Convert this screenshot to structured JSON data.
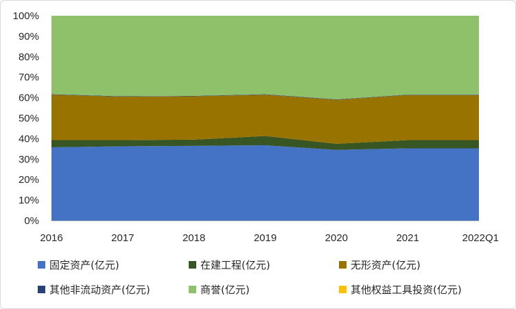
{
  "chart_data": {
    "type": "area",
    "stacked": true,
    "percent": true,
    "categories": [
      "2016",
      "2017",
      "2018",
      "2019",
      "2020",
      "2021",
      "2022Q1"
    ],
    "ylim": [
      0,
      100
    ],
    "y_ticks": [
      "0%",
      "10%",
      "20%",
      "30%",
      "40%",
      "50%",
      "60%",
      "70%",
      "80%",
      "90%",
      "100%"
    ],
    "grid": false,
    "legend_position": "bottom",
    "series": [
      {
        "name": "固定资产(亿元)",
        "color": "#4472C4",
        "values": [
          35.8,
          36.3,
          36.5,
          36.8,
          34.5,
          35.3,
          35.3
        ]
      },
      {
        "name": "在建工程(亿元)",
        "color": "#375623",
        "values": [
          3.5,
          3.0,
          3.0,
          4.5,
          3.0,
          4.0,
          4.0
        ]
      },
      {
        "name": "无形资产(亿元)",
        "color": "#997300",
        "values": [
          22.2,
          21.2,
          21.2,
          20.2,
          21.5,
          22.0,
          22.0
        ]
      },
      {
        "name": "其他非流动资产(亿元)",
        "color": "#264478",
        "values": [
          0.2,
          0.2,
          0.2,
          0.2,
          0.2,
          0.2,
          0.2
        ]
      },
      {
        "name": "商誉(亿元)",
        "color": "#8FC16A",
        "values": [
          38.3,
          39.3,
          39.1,
          38.3,
          40.8,
          38.5,
          38.5
        ]
      },
      {
        "name": "其他权益工具投资(亿元)",
        "color": "#FFC000",
        "values": [
          0,
          0,
          0,
          0,
          0,
          0,
          0
        ]
      }
    ]
  }
}
